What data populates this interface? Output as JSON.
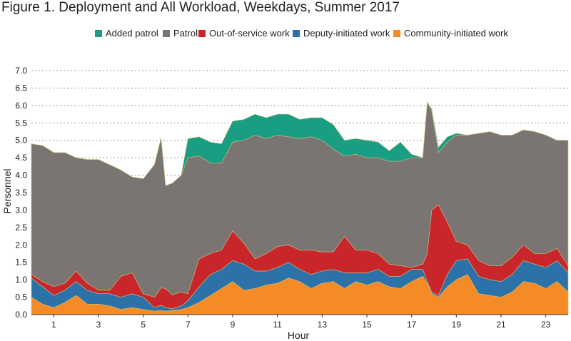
{
  "title": "Figure 1. Deployment and All Workload, Weekdays, Summer 2017",
  "colors": {
    "added_patrol": "#1a9e83",
    "patrol": "#7a7472",
    "out_of_service": "#c9262b",
    "deputy_initiated": "#2c72a8",
    "community_initiated": "#f58b27"
  },
  "chart_data": {
    "type": "area",
    "stacked": true,
    "title": "Figure 1. Deployment and All Workload, Weekdays, Summer 2017",
    "xlabel": "Hour",
    "ylabel": "Personnel",
    "xlim": [
      0,
      24
    ],
    "ylim": [
      0,
      7.0
    ],
    "xticks": [
      "1",
      "3",
      "5",
      "7",
      "9",
      "11",
      "13",
      "15",
      "17",
      "19",
      "21",
      "23"
    ],
    "xtick_values": [
      1,
      3,
      5,
      7,
      9,
      11,
      13,
      15,
      17,
      19,
      21,
      23
    ],
    "yticks": [
      "0.0",
      "0.5",
      "1.0",
      "1.5",
      "2.0",
      "2.5",
      "3.0",
      "3.5",
      "4.0",
      "4.5",
      "5.0",
      "5.5",
      "6.0",
      "6.5",
      "7.0"
    ],
    "grid": "horizontal dotted",
    "legend_position": "top",
    "x": [
      0,
      0.5,
      1,
      1.5,
      2,
      2.5,
      3,
      3.5,
      4,
      4.5,
      5,
      5.5,
      5.8,
      6,
      6.3,
      6.7,
      7,
      7.5,
      8,
      8.5,
      9,
      9.5,
      10,
      10.5,
      11,
      11.5,
      12,
      12.5,
      13,
      13.5,
      14,
      14.5,
      15,
      15.5,
      16,
      16.5,
      17,
      17.5,
      17.7,
      17.9,
      18.2,
      18.6,
      19,
      19.5,
      20,
      20.5,
      21,
      21.5,
      22,
      22.5,
      23,
      23.5,
      24
    ],
    "series": [
      {
        "name": "Community-initiated work",
        "key": "community_initiated",
        "values": [
          0.5,
          0.3,
          0.2,
          0.35,
          0.55,
          0.3,
          0.3,
          0.25,
          0.15,
          0.2,
          0.15,
          0.1,
          0.12,
          0.1,
          0.12,
          0.15,
          0.2,
          0.35,
          0.55,
          0.75,
          0.95,
          0.7,
          0.75,
          0.85,
          0.9,
          1.05,
          0.95,
          0.75,
          0.9,
          0.95,
          0.75,
          0.95,
          0.85,
          0.95,
          0.8,
          0.75,
          0.95,
          1.1,
          0.9,
          0.6,
          0.5,
          0.8,
          1.0,
          1.15,
          0.6,
          0.55,
          0.5,
          0.65,
          0.95,
          0.9,
          0.75,
          0.95,
          0.65
        ]
      },
      {
        "name": "Deputy-initiated work",
        "key": "deputy_initiated",
        "values": [
          0.55,
          0.5,
          0.35,
          0.35,
          0.4,
          0.4,
          0.3,
          0.35,
          0.35,
          0.4,
          0.35,
          0.1,
          0.15,
          0.1,
          0.05,
          0.1,
          0.2,
          0.45,
          0.6,
          0.55,
          0.6,
          0.75,
          0.5,
          0.4,
          0.45,
          0.45,
          0.35,
          0.4,
          0.35,
          0.35,
          0.45,
          0.25,
          0.35,
          0.35,
          0.3,
          0.35,
          0.35,
          0.2,
          0.05,
          0.05,
          0.05,
          0.35,
          0.55,
          0.45,
          0.5,
          0.45,
          0.45,
          0.5,
          0.6,
          0.55,
          0.6,
          0.6,
          0.55
        ]
      },
      {
        "name": "Out-of-service work",
        "key": "out_of_service",
        "values": [
          0.1,
          0.15,
          0.25,
          0.2,
          0.3,
          0.2,
          0.1,
          0.1,
          0.6,
          0.6,
          0.1,
          0.3,
          0.5,
          0.55,
          0.4,
          0.4,
          0.2,
          0.8,
          0.6,
          0.55,
          0.85,
          0.6,
          0.35,
          0.5,
          0.6,
          0.5,
          0.55,
          0.7,
          0.55,
          0.5,
          1.05,
          0.65,
          0.65,
          0.45,
          0.35,
          0.3,
          0.05,
          0.15,
          0.8,
          2.35,
          2.6,
          1.5,
          0.55,
          0.4,
          0.45,
          0.4,
          0.45,
          0.5,
          0.45,
          0.3,
          0.4,
          0.35,
          0.2
        ]
      },
      {
        "name": "Patrol",
        "key": "patrol",
        "values": [
          3.75,
          3.9,
          3.85,
          3.75,
          3.25,
          3.55,
          3.75,
          3.6,
          3.05,
          2.75,
          3.3,
          3.8,
          4.3,
          2.95,
          3.2,
          3.35,
          3.9,
          2.95,
          2.6,
          2.5,
          2.55,
          2.95,
          3.55,
          3.3,
          3.2,
          3.1,
          3.2,
          3.25,
          3.2,
          2.95,
          2.3,
          2.75,
          2.65,
          2.75,
          2.95,
          3.0,
          3.15,
          3.05,
          4.35,
          2.85,
          1.5,
          2.3,
          3.05,
          3.15,
          3.65,
          3.85,
          3.75,
          3.5,
          3.3,
          3.5,
          3.4,
          3.1,
          3.6
        ]
      },
      {
        "name": "Added patrol",
        "key": "added_patrol",
        "values": [
          0,
          0,
          0,
          0,
          0,
          0,
          0,
          0,
          0,
          0,
          0,
          0,
          0,
          0,
          0,
          0,
          0.55,
          0.55,
          0.6,
          0.55,
          0.6,
          0.6,
          0.6,
          0.6,
          0.6,
          0.65,
          0.55,
          0.55,
          0.65,
          0.7,
          0.45,
          0.45,
          0.5,
          0.45,
          0.3,
          0.55,
          0.1,
          0,
          0,
          0.05,
          0.15,
          0.15,
          0.05,
          0,
          0,
          0,
          0,
          0,
          0,
          0,
          0,
          0,
          0
        ]
      }
    ]
  }
}
